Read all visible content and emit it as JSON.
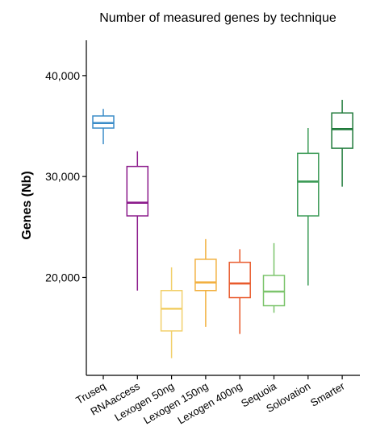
{
  "chart_data": {
    "type": "box",
    "title": "Number of measured genes by technique",
    "xlabel": "",
    "ylabel": "Genes (Nb)",
    "ylim": [
      10300,
      43500
    ],
    "y_ticks": [
      {
        "value": 20000,
        "label": "20,000"
      },
      {
        "value": 30000,
        "label": "30,000"
      },
      {
        "value": 40000,
        "label": "40,000"
      }
    ],
    "grid": false,
    "legend": "none",
    "categories": [
      "Truseq",
      "RNAaccess",
      "Lexogen 50ng",
      "Lexogen 150ng",
      "Lexogen 400ng",
      "Sequoia",
      "Solovation",
      "Smarter"
    ],
    "colors": [
      "#3a8cc8",
      "#8b1a8b",
      "#f2d06b",
      "#f2b040",
      "#e85a2c",
      "#7cc46c",
      "#3a9a55",
      "#1f7a3a"
    ],
    "boxes": [
      {
        "category": "Truseq",
        "min": 33200,
        "q1": 34800,
        "median": 35300,
        "q3": 36000,
        "max": 36700
      },
      {
        "category": "RNAaccess",
        "min": 18700,
        "q1": 26100,
        "median": 27400,
        "q3": 31000,
        "max": 32500
      },
      {
        "category": "Lexogen 50ng",
        "min": 12000,
        "q1": 14700,
        "median": 16900,
        "q3": 18700,
        "max": 21000
      },
      {
        "category": "Lexogen 150ng",
        "min": 15100,
        "q1": 18700,
        "median": 19500,
        "q3": 21800,
        "max": 23800
      },
      {
        "category": "Lexogen 400ng",
        "min": 14400,
        "q1": 18000,
        "median": 19400,
        "q3": 21500,
        "max": 22800
      },
      {
        "category": "Sequoia",
        "min": 16500,
        "q1": 17200,
        "median": 18600,
        "q3": 20200,
        "max": 23400
      },
      {
        "category": "Solovation",
        "min": 19200,
        "q1": 26100,
        "median": 29500,
        "q3": 32300,
        "max": 34800
      },
      {
        "category": "Smarter",
        "min": 29000,
        "q1": 32800,
        "median": 34700,
        "q3": 36300,
        "max": 37600
      }
    ]
  }
}
